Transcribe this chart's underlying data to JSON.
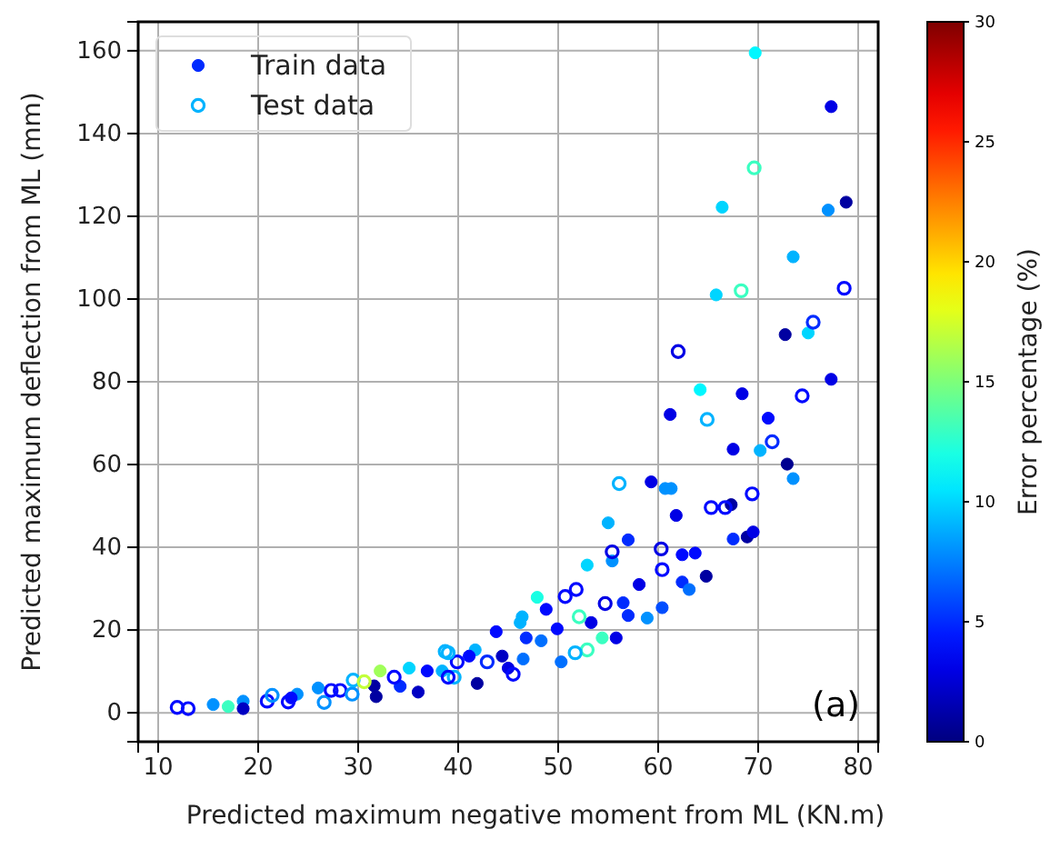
{
  "chart_data": {
    "type": "scatter",
    "xlabel": "Predicted maximum negative moment from ML (KN.m)",
    "ylabel": "Predicted maximum deflection from ML (mm)",
    "clabel": "Error percentage (%)",
    "xlim": [
      8,
      82
    ],
    "ylim": [
      -7,
      167
    ],
    "xticks": [
      10,
      20,
      30,
      40,
      50,
      60,
      70,
      80
    ],
    "yticks": [
      0,
      20,
      40,
      60,
      80,
      100,
      120,
      140,
      160
    ],
    "clim": [
      0,
      30
    ],
    "cticks": [
      0,
      5,
      10,
      15,
      20,
      25,
      30
    ],
    "grid": true,
    "legend": "top left",
    "marker": "circle",
    "annotations": [
      "(a)"
    ],
    "series": [
      {
        "name": "Train data",
        "x": [
          69.7,
          77.3,
          66.4,
          78.8,
          77,
          73.5,
          65.8,
          72.7,
          75,
          77.3,
          64.2,
          68.4,
          61.2,
          71,
          67.5,
          70.2,
          72.9,
          73.5,
          59.3,
          60.7,
          61.3,
          61.8,
          67.3,
          55,
          57,
          62.4,
          63.7,
          67.5,
          68.9,
          69.5,
          55.4,
          52.9,
          64.8,
          62.4,
          63.1,
          58.1,
          56.5,
          60.4,
          57,
          58.9,
          53.3,
          48.8,
          47.9,
          46.4,
          55.8,
          54.4,
          50.3,
          49.9,
          48.3,
          46.8,
          46.5,
          43.8,
          44.4,
          45,
          41.7,
          41.1,
          41.9,
          38.4,
          46.2,
          15.5,
          17,
          18.5,
          18.5,
          23.9,
          23.3,
          26,
          31.8,
          32.2,
          31.6,
          34.2,
          36,
          35.1,
          36.9
        ],
        "values": [
          159.5,
          146.5,
          122.2,
          123.4,
          121.5,
          110.2,
          101,
          91.4,
          91.8,
          80.6,
          78.1,
          77.1,
          72.1,
          71.2,
          63.7,
          63.4,
          60.1,
          56.6,
          55.8,
          54.2,
          54.2,
          47.7,
          50.3,
          45.9,
          41.8,
          38.2,
          38.6,
          42,
          42.5,
          43.7,
          36.7,
          35.7,
          33,
          31.6,
          29.8,
          31,
          26.6,
          25.4,
          23.5,
          22.9,
          21.8,
          25,
          27.9,
          23.2,
          18.1,
          18.1,
          12.3,
          20.3,
          17.4,
          18.1,
          13,
          19.6,
          13.7,
          10.8,
          15.2,
          13.7,
          7.1,
          10.1,
          21.8,
          2,
          1.5,
          2.8,
          1,
          4.5,
          3.6,
          6,
          3.9,
          10.1,
          6.5,
          6.4,
          5,
          10.8,
          10.1
        ],
        "colors": [
          "#00f7ff",
          "#0000e5",
          "#00d5ff",
          "#0000a1",
          "#0091ff",
          "#00b3ff",
          "#00d5ff",
          "#0000a1",
          "#00d5ff",
          "#0000e5",
          "#00f7ff",
          "#0000e5",
          "#0000e5",
          "#0009ff",
          "#0000e5",
          "#00b3ff",
          "#000090",
          "#0091ff",
          "#0000e5",
          "#0091ff",
          "#0091ff",
          "#0000e5",
          "#0000a1",
          "#00b3ff",
          "#002bff",
          "#0009ff",
          "#0009ff",
          "#002bff",
          "#0000a1",
          "#0000e5",
          "#0091ff",
          "#00d5ff",
          "#0000a1",
          "#002bff",
          "#006fff",
          "#0000e5",
          "#002bff",
          "#004dff",
          "#002bff",
          "#0091ff",
          "#0000e5",
          "#0009ff",
          "#19ffe4",
          "#00b3ff",
          "#0000e5",
          "#3affc1",
          "#006fff",
          "#0009ff",
          "#006fff",
          "#002bff",
          "#006fff",
          "#0009ff",
          "#0000c3",
          "#0000e5",
          "#00b3ff",
          "#0009ff",
          "#0000a1",
          "#00b3ff",
          "#00b3ff",
          "#0091ff",
          "#3affc1",
          "#0091ff",
          "#0000c3",
          "#0091ff",
          "#0009ff",
          "#0091ff",
          "#0000a1",
          "#a0ff59",
          "#0000a1",
          "#002bff",
          "#0000c3",
          "#00d5ff",
          "#0009ff"
        ]
      },
      {
        "name": "Test data",
        "x": [
          69.6,
          78.6,
          68.3,
          75.5,
          62,
          74.4,
          64.9,
          71.4,
          56.1,
          65.3,
          66.7,
          69.4,
          55.4,
          60.3,
          60.4,
          54.7,
          51.8,
          50.7,
          52.1,
          52.9,
          51.7,
          45.5,
          42.9,
          39.9,
          39,
          39.6,
          11.9,
          13,
          20.9,
          21.4,
          23,
          26.6,
          27.3,
          28.2,
          29.4,
          29.5,
          30.6,
          33.6,
          39,
          38.7
        ],
        "values": [
          131.7,
          102.6,
          102,
          94.4,
          87.3,
          76.6,
          70.9,
          65.5,
          55.4,
          49.6,
          49.6,
          52.9,
          38.9,
          39.6,
          34.6,
          26.4,
          29.8,
          28.1,
          23.2,
          15.2,
          14.5,
          9.3,
          12.3,
          12.3,
          14.5,
          8.6,
          1.3,
          1,
          2.8,
          4.2,
          2.6,
          2.5,
          5.4,
          5.4,
          4.5,
          7.9,
          7.5,
          8.6,
          8.6,
          14.8
        ],
        "colors": [
          "#3affc1",
          "#0009ff",
          "#3affc1",
          "#002bff",
          "#0000e5",
          "#0009ff",
          "#00b3ff",
          "#002bff",
          "#00b3ff",
          "#0009ff",
          "#0009ff",
          "#0009ff",
          "#0000e5",
          "#0000e5",
          "#0009ff",
          "#0000e5",
          "#0009ff",
          "#0009ff",
          "#3affc1",
          "#3affc1",
          "#00b3ff",
          "#0009ff",
          "#002bff",
          "#0009ff",
          "#00b3ff",
          "#00b3ff",
          "#0009ff",
          "#0009ff",
          "#0009ff",
          "#0091ff",
          "#0009ff",
          "#0091ff",
          "#0009ff",
          "#0009ff",
          "#0091ff",
          "#00b3ff",
          "#c2ff39",
          "#0009ff",
          "#0009ff",
          "#00b3ff"
        ]
      }
    ]
  }
}
